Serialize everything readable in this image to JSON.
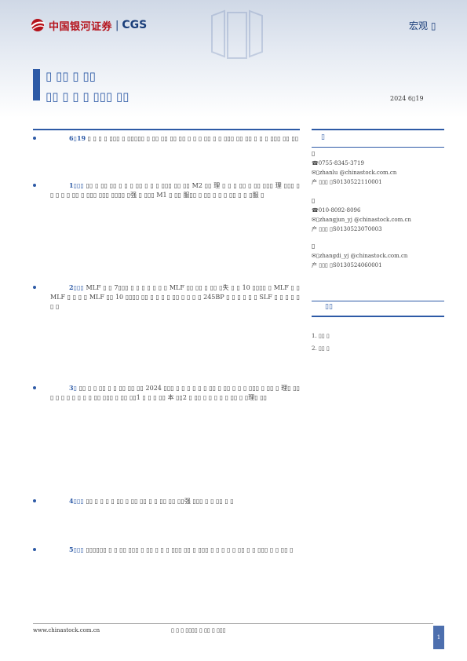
{
  "header": {
    "logo_cn": "中国银河证券",
    "logo_sep": "|",
    "logo_en": "CGS",
    "report_type": "宏观 ▯",
    "watermark": "CGS"
  },
  "title": {
    "line1": "▯ ▯▯ ▯ ▯▯",
    "line2": "▯▯ ▯ ▯ ▯ ▯▯▯ ▯▯",
    "date": "2024 6▯19"
  },
  "bullets": [
    {
      "head": "6▯19",
      "body": "▯ ▯ ▯ ▯ ▯▯▯ ▯ ▯▯▯▯▯ ▯ ▯▯ ▯▯ ▯▯ ▯▯ ▯ ▯ ▯ ▯▯ ▯ ▯ ▯▯▯ ▯▯ ▯▯ ▯ ▯ ▯ ▯▯▯ ▯▯ ▯▯"
    },
    {
      "head": "1▯▯▯",
      "body": "▯▯ ▯ ▯▯ ▯▯ ▯ ▯ ▯ ▯▯ ▯ ▯ ▯ ▯▯▯ ▯▯ ▯▯ M2 ▯▯ 理 ▯ ▯ ▯ ▯▯ ▯ ▯▯ ▯▯▯ 理 ▯▯▯ ▯ ▯ ▯ ▯ ▯ ▯▯ ▯ ▯▯▯ ▯▯▯ ▯▯▯▯ ▯强 ▯ ▯▯▯ M1 ▯ ▯▯ 服▯▯ ▯ ▯▯ ▯ ▯ ▯ ▯▯ ▯ ▯ ▯服 ▯"
    },
    {
      "head": "2▯▯▯",
      "body": "MLF ▯ ▯ 7▯▯▯ ▯ ▯ ▯ ▯ ▯ ▯ ▯ MLF ▯▯ ▯▯ ▯ ▯▯ ▯失 ▯ ▯ 10 ▯▯▯▯ ▯ MLF ▯ ▯ MLF ▯ ▯ ▯ ▯ MLF ▯▯ 10 ▯▯▯▯ ▯▯ ▯ ▯ ▯ ▯ ▯▯ ▯ ▯ ▯ ▯ 245BP ▯ ▯ ▯ ▯ ▯ ▯ SLF ▯ ▯ ▯ ▯ ▯▯ ▯"
    },
    {
      "head": "3▯",
      "body": "▯▯ ▯ ▯ ▯▯ ▯ ▯ ▯▯ ▯▯ ▯▯ 2024 ▯▯▯ ▯ ▯ ▯ ▯ ▯ ▯ ▯▯ ▯ ▯▯ ▯ ▯ ▯ ▯▯▯ ▯ ▯▯ ▯ 理▯ ▯▯ ▯ ▯ ▯ ▯ ▯ ▯ ▯ ▯ ▯▯ ▯▯▯ ▯ ▯▯ ▯▯1 ▯ ▯ ▯ ▯▯ 本 ▯▯2 ▯ ▯▯ ▯ ▯ ▯ ▯ ▯ ▯▯ ▯ ▯理▯ ▯▯"
    },
    {
      "head": "4▯▯▯",
      "body": "▯▯ ▯ ▯ ▯ ▯ ▯▯ ▯ ▯▯ ▯▯ ▯ ▯ ▯▯ ▯▯ ▯▯强 ▯▯▯ ▯ ▯ ▯▯ ▯ ▯"
    },
    {
      "head": "5▯▯▯",
      "body": "▯▯▯▯▯▯ ▯ ▯ ▯▯ ▯▯▯ ▯ ▯▯ ▯ ▯ ▯ ▯▯▯ ▯▯ ▯ ▯▯▯ ▯ ▯ ▯ ▯ ▯ ▯▯ ▯ ▯ ▯▯▯ ▯ ▯ ▯▯ ▯"
    }
  ],
  "sidebar": {
    "title": "▯",
    "subtitle": "▯",
    "analysts": [
      {
        "name": "▯",
        "phone": "☎0755-8345-3719",
        "email": "✉▯zhanlu @chinastock.com.cn",
        "cert": "产 ▯▯▯ ▯S0130522110001"
      },
      {
        "name": "▯",
        "phone": "☎010-8092-8096",
        "email": "✉▯zhangjun_yj @chinastock.com.cn",
        "cert": "产 ▯▯▯ ▯S0130523070003"
      },
      {
        "name": "▯",
        "phone": "",
        "email": "✉▯zhangdi_yj @chinastock.com.cn",
        "cert": "产 ▯▯▯ ▯S0130524060001"
      }
    ],
    "related_title": "▯▯",
    "related": [
      "1. ▯▯ ▯",
      "2. ▯▯ ▯"
    ]
  },
  "footer": {
    "url": "www.chinastock.com.cn",
    "note": "▯ ▯ ▯ ▯▯▯▯ ▯ ▯▯ ▯ ▯▯▯",
    "page": "1"
  }
}
